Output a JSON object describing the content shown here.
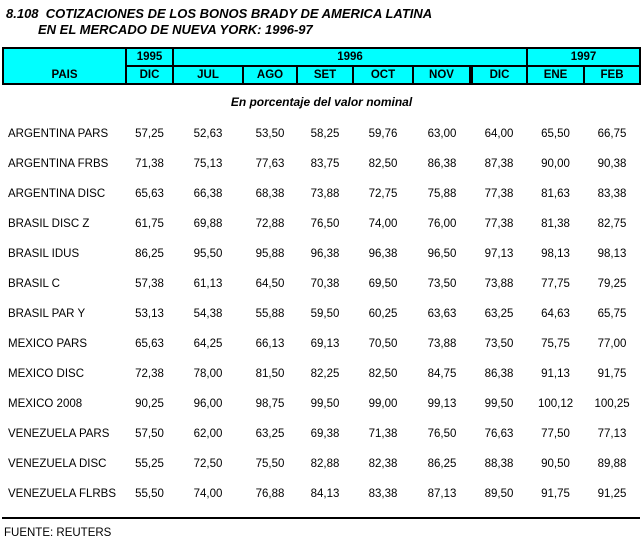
{
  "title": {
    "line1": "8.108  COTIZACIONES DE LOS BONOS BRADY DE AMERICA LATINA",
    "line2": "EN EL MERCADO DE NUEVA YORK: 1996-97"
  },
  "subtitle": "En porcentaje del valor nominal",
  "table": {
    "corner_header": "PAIS",
    "year_groups": [
      {
        "label": "1995",
        "span": 1
      },
      {
        "label": "1996",
        "span": 6
      },
      {
        "label": "1997",
        "span": 2
      }
    ],
    "month_headers": [
      "DIC",
      "JUL",
      "AGO",
      "SET",
      "OCT",
      "NOV",
      "DIC",
      "ENE",
      "FEB"
    ],
    "rows": [
      {
        "label": "ARGENTINA PARS",
        "values": [
          "57,25",
          "52,63",
          "53,50",
          "58,25",
          "59,76",
          "63,00",
          "64,00",
          "65,50",
          "66,75"
        ]
      },
      {
        "label": "ARGENTINA FRBS",
        "values": [
          "71,38",
          "75,13",
          "77,63",
          "83,75",
          "82,50",
          "86,38",
          "87,38",
          "90,00",
          "90,38"
        ]
      },
      {
        "label": "ARGENTINA DISC",
        "values": [
          "65,63",
          "66,38",
          "68,38",
          "73,88",
          "72,75",
          "75,88",
          "77,38",
          "81,63",
          "83,38"
        ]
      },
      {
        "label": "BRASIL DISC Z",
        "values": [
          "61,75",
          "69,88",
          "72,88",
          "76,50",
          "74,00",
          "76,00",
          "77,38",
          "81,38",
          "82,75"
        ]
      },
      {
        "label": "BRASIL IDUS",
        "values": [
          "86,25",
          "95,50",
          "95,88",
          "96,38",
          "96,38",
          "96,50",
          "97,13",
          "98,13",
          "98,13"
        ]
      },
      {
        "label": "BRASIL C",
        "values": [
          "57,38",
          "61,13",
          "64,50",
          "70,38",
          "69,50",
          "73,50",
          "73,88",
          "77,75",
          "79,25"
        ]
      },
      {
        "label": "BRASIL PAR Y",
        "values": [
          "53,13",
          "54,38",
          "55,88",
          "59,50",
          "60,25",
          "63,63",
          "63,25",
          "64,63",
          "65,75"
        ]
      },
      {
        "label": "MEXICO PARS",
        "values": [
          "65,63",
          "64,25",
          "66,13",
          "69,13",
          "70,50",
          "73,88",
          "73,50",
          "75,75",
          "77,00"
        ]
      },
      {
        "label": "MEXICO DISC",
        "values": [
          "72,38",
          "78,00",
          "81,50",
          "82,25",
          "82,50",
          "84,75",
          "86,38",
          "91,13",
          "91,75"
        ]
      },
      {
        "label": "MEXICO 2008",
        "values": [
          "90,25",
          "96,00",
          "98,75",
          "99,50",
          "99,00",
          "99,13",
          "99,50",
          "100,12",
          "100,25"
        ]
      },
      {
        "label": "VENEZUELA PARS",
        "values": [
          "57,50",
          "62,00",
          "63,25",
          "69,38",
          "71,38",
          "76,50",
          "76,63",
          "77,50",
          "77,13"
        ]
      },
      {
        "label": "VENEZUELA DISC",
        "values": [
          "55,25",
          "72,50",
          "75,50",
          "82,88",
          "82,38",
          "86,25",
          "88,38",
          "90,50",
          "89,88"
        ]
      },
      {
        "label": "VENEZUELA FLRBS",
        "values": [
          "55,50",
          "74,00",
          "76,88",
          "84,13",
          "83,38",
          "87,13",
          "89,50",
          "91,75",
          "91,25"
        ]
      }
    ]
  },
  "footer": {
    "source": "FUENTE: REUTERS"
  },
  "colors": {
    "header_bg": "#00FFFF",
    "border": "#000000"
  }
}
